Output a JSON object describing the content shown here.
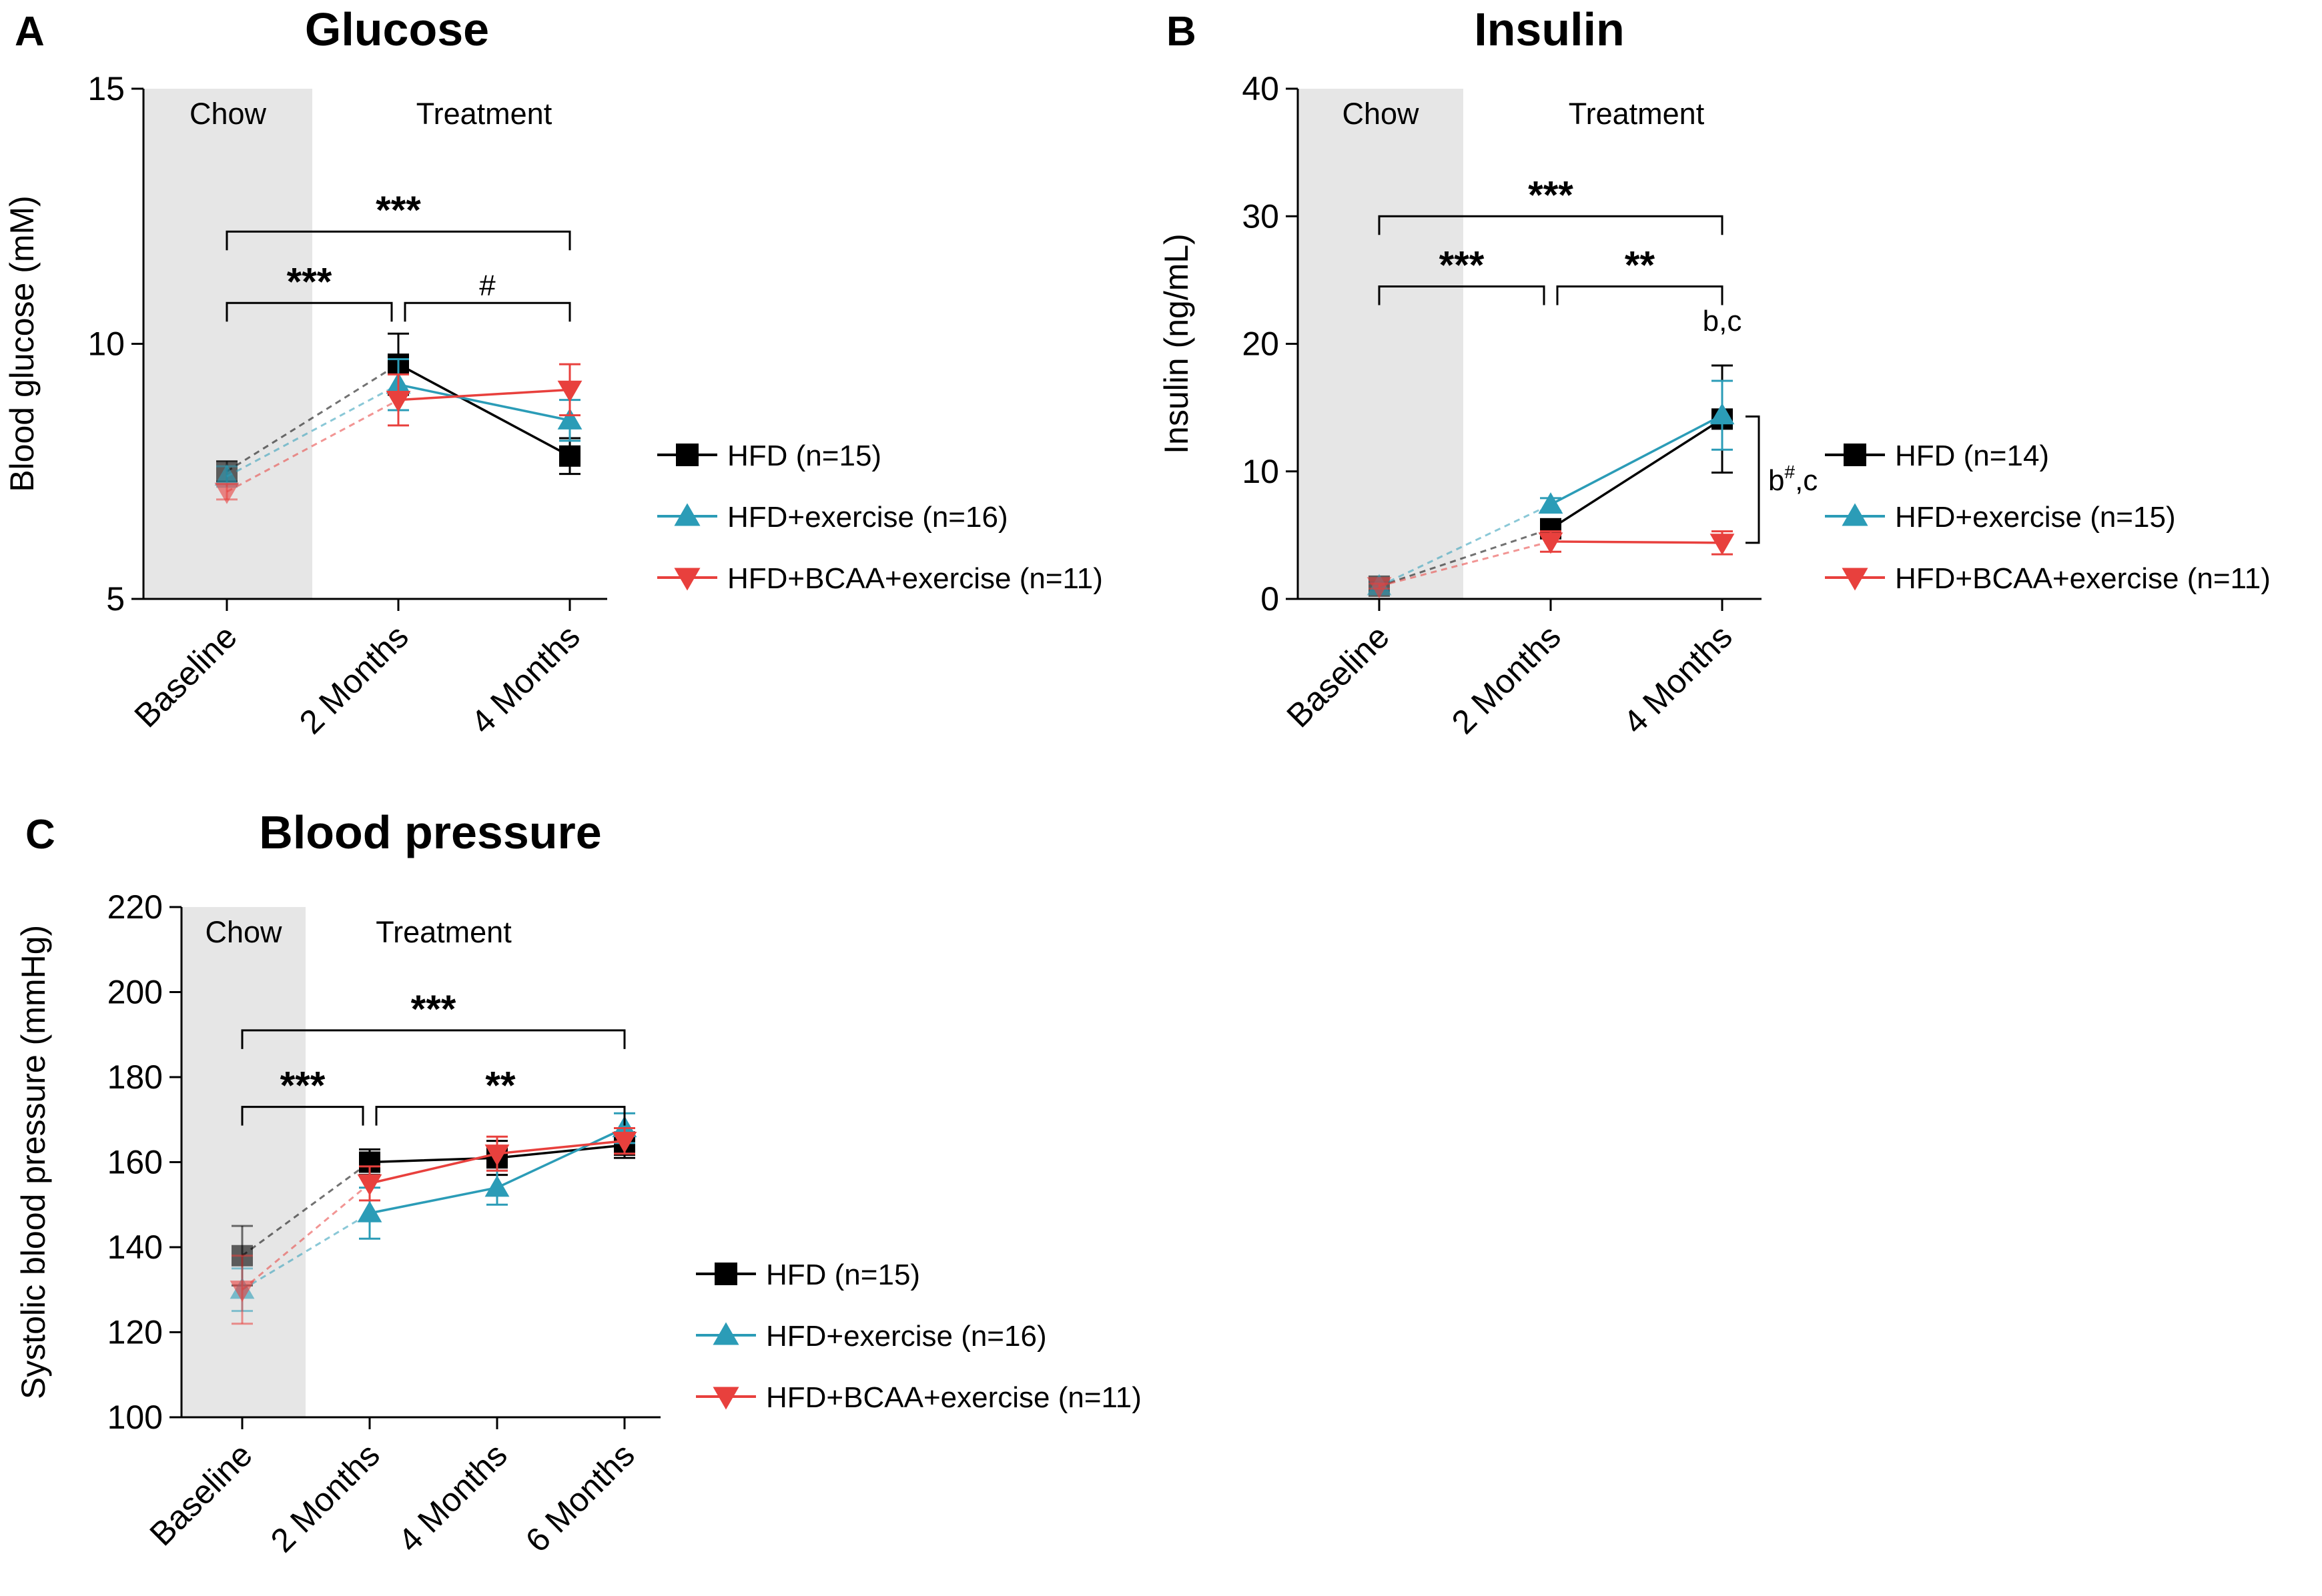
{
  "chart_data": [
    {
      "panel": "A",
      "type": "line",
      "title": "Glucose",
      "xlabel": "",
      "ylabel": "Blood glucose (mM)",
      "categories": [
        "Baseline",
        "2 Months",
        "4 Months"
      ],
      "ylim": [
        5,
        15
      ],
      "yticks": [
        "5",
        "10",
        "15"
      ],
      "shaded_regions": [
        {
          "label": "Chow",
          "from": "Baseline",
          "shaded": true
        },
        {
          "label": "Treatment",
          "from": "2 Months",
          "shaded": false
        }
      ],
      "series": [
        {
          "name": "HFD (n=15)",
          "marker": "square",
          "color": "#000000",
          "values": [
            7.5,
            9.6,
            7.8
          ],
          "errors": [
            0.2,
            0.6,
            0.35
          ]
        },
        {
          "name": "HFD+exercise (n=16)",
          "marker": "triangle-up",
          "color": "#2b9cb7",
          "values": [
            7.4,
            9.2,
            8.5
          ],
          "errors": [
            0.2,
            0.5,
            0.4
          ]
        },
        {
          "name": "HFD+BCAA+exercise (n=11)",
          "marker": "triangle-down",
          "color": "#e8403d",
          "values": [
            7.1,
            8.9,
            9.1
          ],
          "errors": [
            0.15,
            0.5,
            0.5
          ]
        }
      ],
      "significance": [
        {
          "from": "Baseline",
          "to": "4 Months",
          "label": "***",
          "level": 12.2
        },
        {
          "from": "Baseline",
          "to": "2 Months",
          "label": "***",
          "level": 10.8
        },
        {
          "from": "2 Months",
          "to": "4 Months",
          "label": "#",
          "level": 10.8
        }
      ],
      "legend_position": "right"
    },
    {
      "panel": "B",
      "type": "line",
      "title": "Insulin",
      "xlabel": "",
      "ylabel": "Insulin (ng/mL)",
      "categories": [
        "Baseline",
        "2 Months",
        "4 Months"
      ],
      "ylim": [
        0,
        40
      ],
      "yticks": [
        "0",
        "10",
        "20",
        "30",
        "40"
      ],
      "shaded_regions": [
        {
          "label": "Chow",
          "from": "Baseline",
          "shaded": true
        },
        {
          "label": "Treatment",
          "from": "2 Months",
          "shaded": false
        }
      ],
      "series": [
        {
          "name": "HFD (n=14)",
          "marker": "square",
          "color": "#000000",
          "values": [
            1.0,
            5.5,
            14.1
          ],
          "errors": [
            0.3,
            0.6,
            4.2
          ]
        },
        {
          "name": "HFD+exercise (n=15)",
          "marker": "triangle-up",
          "color": "#2b9cb7",
          "values": [
            1.0,
            7.4,
            14.4
          ],
          "errors": [
            0.3,
            0.5,
            2.7
          ]
        },
        {
          "name": "HFD+BCAA+exercise (n=11)",
          "marker": "triangle-down",
          "color": "#e8403d",
          "values": [
            1.0,
            4.5,
            4.4
          ],
          "errors": [
            0.2,
            0.8,
            0.9
          ]
        }
      ],
      "significance": [
        {
          "from": "Baseline",
          "to": "4 Months",
          "label": "***",
          "level": 30
        },
        {
          "from": "Baseline",
          "to": "2 Months",
          "label": "***",
          "level": 24.5
        },
        {
          "from": "2 Months",
          "to": "4 Months",
          "label": "**",
          "level": 24.5
        }
      ],
      "annotations": [
        {
          "text": "b,c",
          "category": "4 Months",
          "value": 20.4
        },
        {
          "text_main": "b",
          "text_sup": "#",
          "text_tail": ",c",
          "category": "4 Months",
          "from_value": 14.3,
          "to_value": 4.4
        }
      ],
      "legend_position": "right"
    },
    {
      "panel": "C",
      "type": "line",
      "title": "Blood pressure",
      "xlabel": "",
      "ylabel": "Systolic blood pressure (mmHg)",
      "categories": [
        "Baseline",
        "2 Months",
        "4 Months",
        "6 Months"
      ],
      "ylim": [
        100,
        220
      ],
      "yticks": [
        "100",
        "120",
        "140",
        "160",
        "180",
        "200",
        "220"
      ],
      "shaded_regions": [
        {
          "label": "Chow",
          "from": "Baseline",
          "shaded": true
        },
        {
          "label": "Treatment",
          "from": "2 Months",
          "shaded": false
        }
      ],
      "series": [
        {
          "name": "HFD (n=15)",
          "marker": "square",
          "color": "#000000",
          "values": [
            138,
            160,
            161,
            164
          ],
          "errors": [
            7,
            3,
            4,
            3
          ]
        },
        {
          "name": "HFD+exercise (n=16)",
          "marker": "triangle-up",
          "color": "#2b9cb7",
          "values": [
            130,
            148,
            154,
            168
          ],
          "errors": [
            5,
            6,
            4,
            3.5
          ]
        },
        {
          "name": "HFD+BCAA+exercise (n=11)",
          "marker": "triangle-down",
          "color": "#e8403d",
          "values": [
            130,
            155,
            162,
            165
          ],
          "errors": [
            8,
            4,
            4,
            3
          ]
        }
      ],
      "significance": [
        {
          "from": "Baseline",
          "to": "6 Months",
          "label": "***",
          "level": 191
        },
        {
          "from": "Baseline",
          "to": "2 Months",
          "label": "***",
          "level": 173
        },
        {
          "from": "2 Months",
          "to": "6 Months",
          "label": "**",
          "level": 173
        }
      ],
      "legend_position": "right"
    }
  ]
}
